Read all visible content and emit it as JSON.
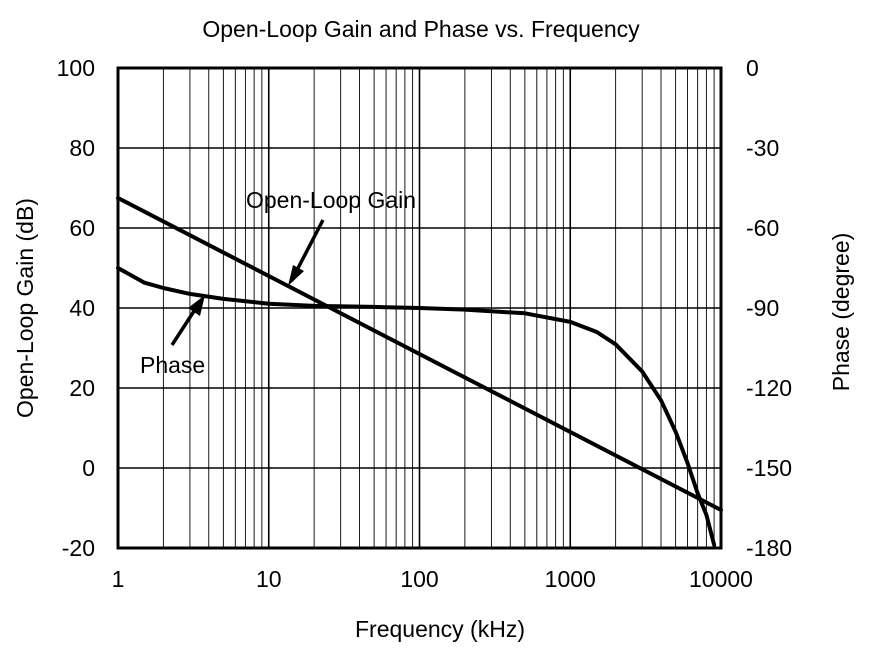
{
  "chart_data": {
    "type": "line",
    "title": "Open-Loop Gain and Phase vs. Frequency",
    "xlabel": "Frequency (kHz)",
    "ylabel": "Open-Loop Gain (dB)",
    "y2label": "Phase (degree)",
    "x_scale": "log",
    "xlim": [
      1,
      10000
    ],
    "ylim": [
      -20,
      100
    ],
    "y2lim": [
      -180,
      0
    ],
    "x_ticks": [
      "1",
      "10",
      "100",
      "1000",
      "10000"
    ],
    "y_ticks": [
      "-20",
      "0",
      "20",
      "40",
      "60",
      "80",
      "100"
    ],
    "y2_ticks": [
      "-180",
      "-150",
      "-120",
      "-90",
      "-60",
      "-30",
      "0"
    ],
    "grid": true,
    "series": [
      {
        "name": "Open-Loop Gain",
        "axis": "left",
        "x": [
          1,
          10000
        ],
        "y": [
          67.5,
          -10.5
        ]
      },
      {
        "name": "Phase",
        "axis": "right",
        "x": [
          1,
          1.5,
          2,
          3,
          5,
          10,
          20,
          50,
          100,
          200,
          500,
          1000,
          1500,
          2000,
          3000,
          4000,
          5000,
          6000,
          7000,
          8000,
          9000
        ],
        "y": [
          -75,
          -80.5,
          -82.5,
          -84.7,
          -86.6,
          -88.4,
          -89.2,
          -89.6,
          -90,
          -90.6,
          -92,
          -95.2,
          -99,
          -103.6,
          -113.8,
          -124.6,
          -136.4,
          -148.2,
          -159.4,
          -167.6,
          -178.8
        ]
      }
    ],
    "annotations": [
      {
        "text": "Open-Loop Gain",
        "series": "Open-Loop Gain"
      },
      {
        "text": "Phase",
        "series": "Phase"
      }
    ]
  }
}
